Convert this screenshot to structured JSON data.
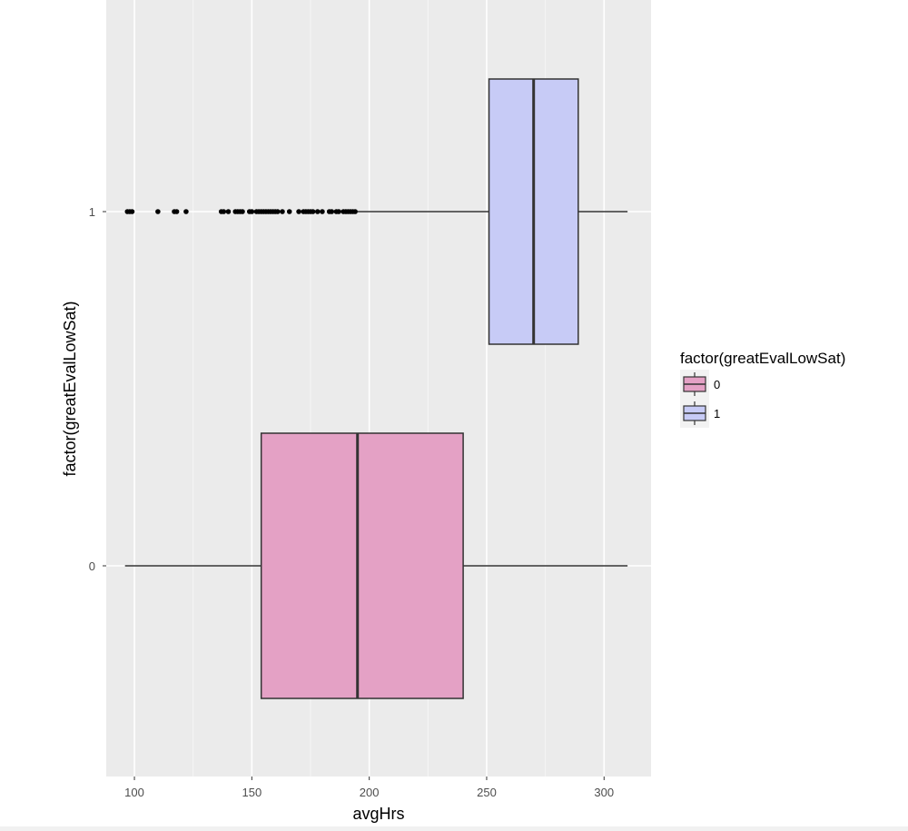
{
  "chart_data": {
    "type": "boxplot",
    "orientation": "horizontal",
    "xlabel": "avgHrs",
    "ylabel": "factor(greatEvalLowSat)",
    "xlim": [
      88,
      320
    ],
    "x_ticks": [
      100,
      150,
      200,
      250,
      300
    ],
    "x_tick_labels": [
      "100",
      "150",
      "200",
      "250",
      "300"
    ],
    "categories": [
      "0",
      "1"
    ],
    "grid": true,
    "panel_background": "#ebebeb",
    "legend": {
      "title": "factor(greatEvalLowSat)",
      "placement": "right",
      "entries": [
        "0",
        "1"
      ]
    },
    "series": [
      {
        "category": "0",
        "color": "#e4a1c5",
        "whisker_low": 96,
        "q1": 154,
        "median": 195,
        "q3": 240,
        "whisker_high": 310,
        "outliers": []
      },
      {
        "category": "1",
        "color": "#c7cbf6",
        "whisker_low": 195,
        "q1": 251,
        "median": 270,
        "q3": 289,
        "whisker_high": 310,
        "outliers": [
          97,
          98,
          99,
          110,
          117,
          118,
          122,
          137,
          138,
          140,
          143,
          144,
          145,
          146,
          149,
          150,
          152,
          153,
          154,
          155,
          156,
          157,
          158,
          159,
          160,
          161,
          163,
          166,
          170,
          172,
          173,
          174,
          175,
          176,
          178,
          180,
          183,
          184,
          186,
          187,
          189,
          190,
          191,
          192,
          193,
          194
        ]
      }
    ]
  }
}
